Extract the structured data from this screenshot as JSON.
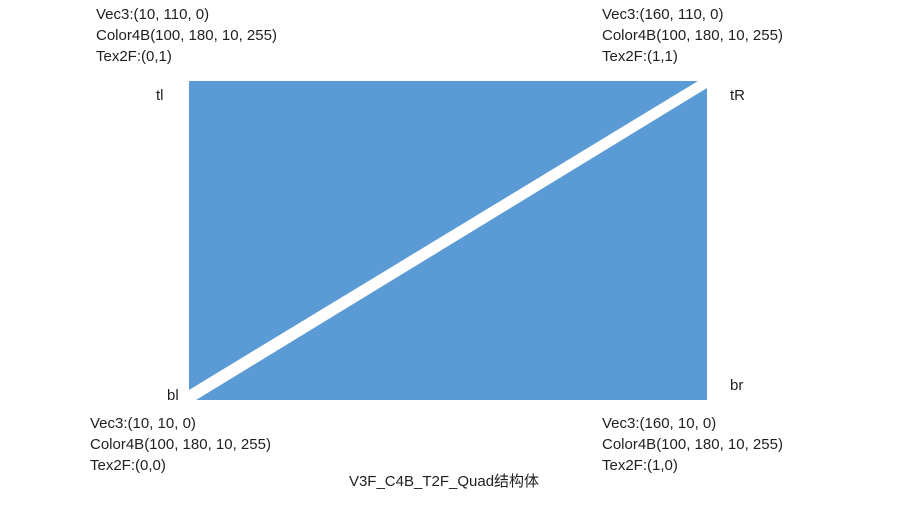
{
  "colors": {
    "quad_fill": "#5b9bd5",
    "diagonal_gap": "#ffffff",
    "text": "#1f1f1f"
  },
  "vertices": {
    "tl": {
      "label": "tl",
      "vec3": "Vec3:(10, 110, 0)",
      "color4b": "Color4B(100, 180, 10, 255)",
      "tex2f": "Tex2F:(0,1)"
    },
    "tr": {
      "label": "tR",
      "vec3": "Vec3:(160, 110, 0)",
      "color4b": "Color4B(100, 180, 10, 255)",
      "tex2f": "Tex2F:(1,1)"
    },
    "bl": {
      "label": "bl",
      "vec3": "Vec3:(10, 10, 0)",
      "color4b": "Color4B(100, 180, 10, 255)",
      "tex2f": "Tex2F:(0,0)"
    },
    "br": {
      "label": "br",
      "vec3": "Vec3:(160, 10, 0)",
      "color4b": "Color4B(100, 180, 10, 255)",
      "tex2f": "Tex2F:(1,0)"
    }
  },
  "caption": "V3F_C4B_T2F_Quad结构体"
}
